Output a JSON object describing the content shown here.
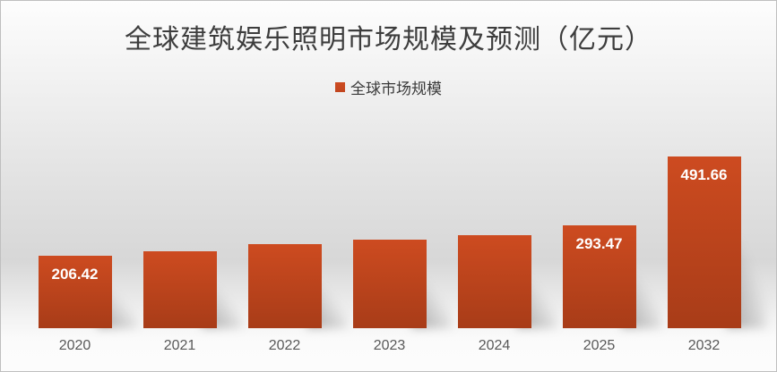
{
  "title": "全球建筑娱乐照明市场规模及预测（亿元）",
  "legend": {
    "label": "全球市场规模"
  },
  "colors": {
    "bar_gradient_top": "#cd4b20",
    "bar_gradient_bottom": "#a83c18",
    "legend_marker": "#c2461f",
    "title_text": "#3d3d3d",
    "axis_label_text": "#595959",
    "value_label_text": "#ffffff"
  },
  "chart_data": {
    "type": "bar",
    "title": "全球建筑娱乐照明市场规模及预测（亿元）",
    "legend_entries": [
      "全球市场规模"
    ],
    "legend_position": "top-center",
    "categories": [
      "2020",
      "2021",
      "2022",
      "2023",
      "2024",
      "2025",
      "2032"
    ],
    "series": [
      {
        "name": "全球市场规模",
        "values": [
          206.42,
          221,
          239,
          252,
          267,
          293.47,
          491.66
        ]
      }
    ],
    "data_labels": [
      "206.42",
      "",
      "",
      "",
      "",
      "293.47",
      "491.66"
    ],
    "xlabel": "",
    "ylabel": "",
    "ylim": [
      0,
      520
    ],
    "grid": false,
    "axes_visible": false
  }
}
